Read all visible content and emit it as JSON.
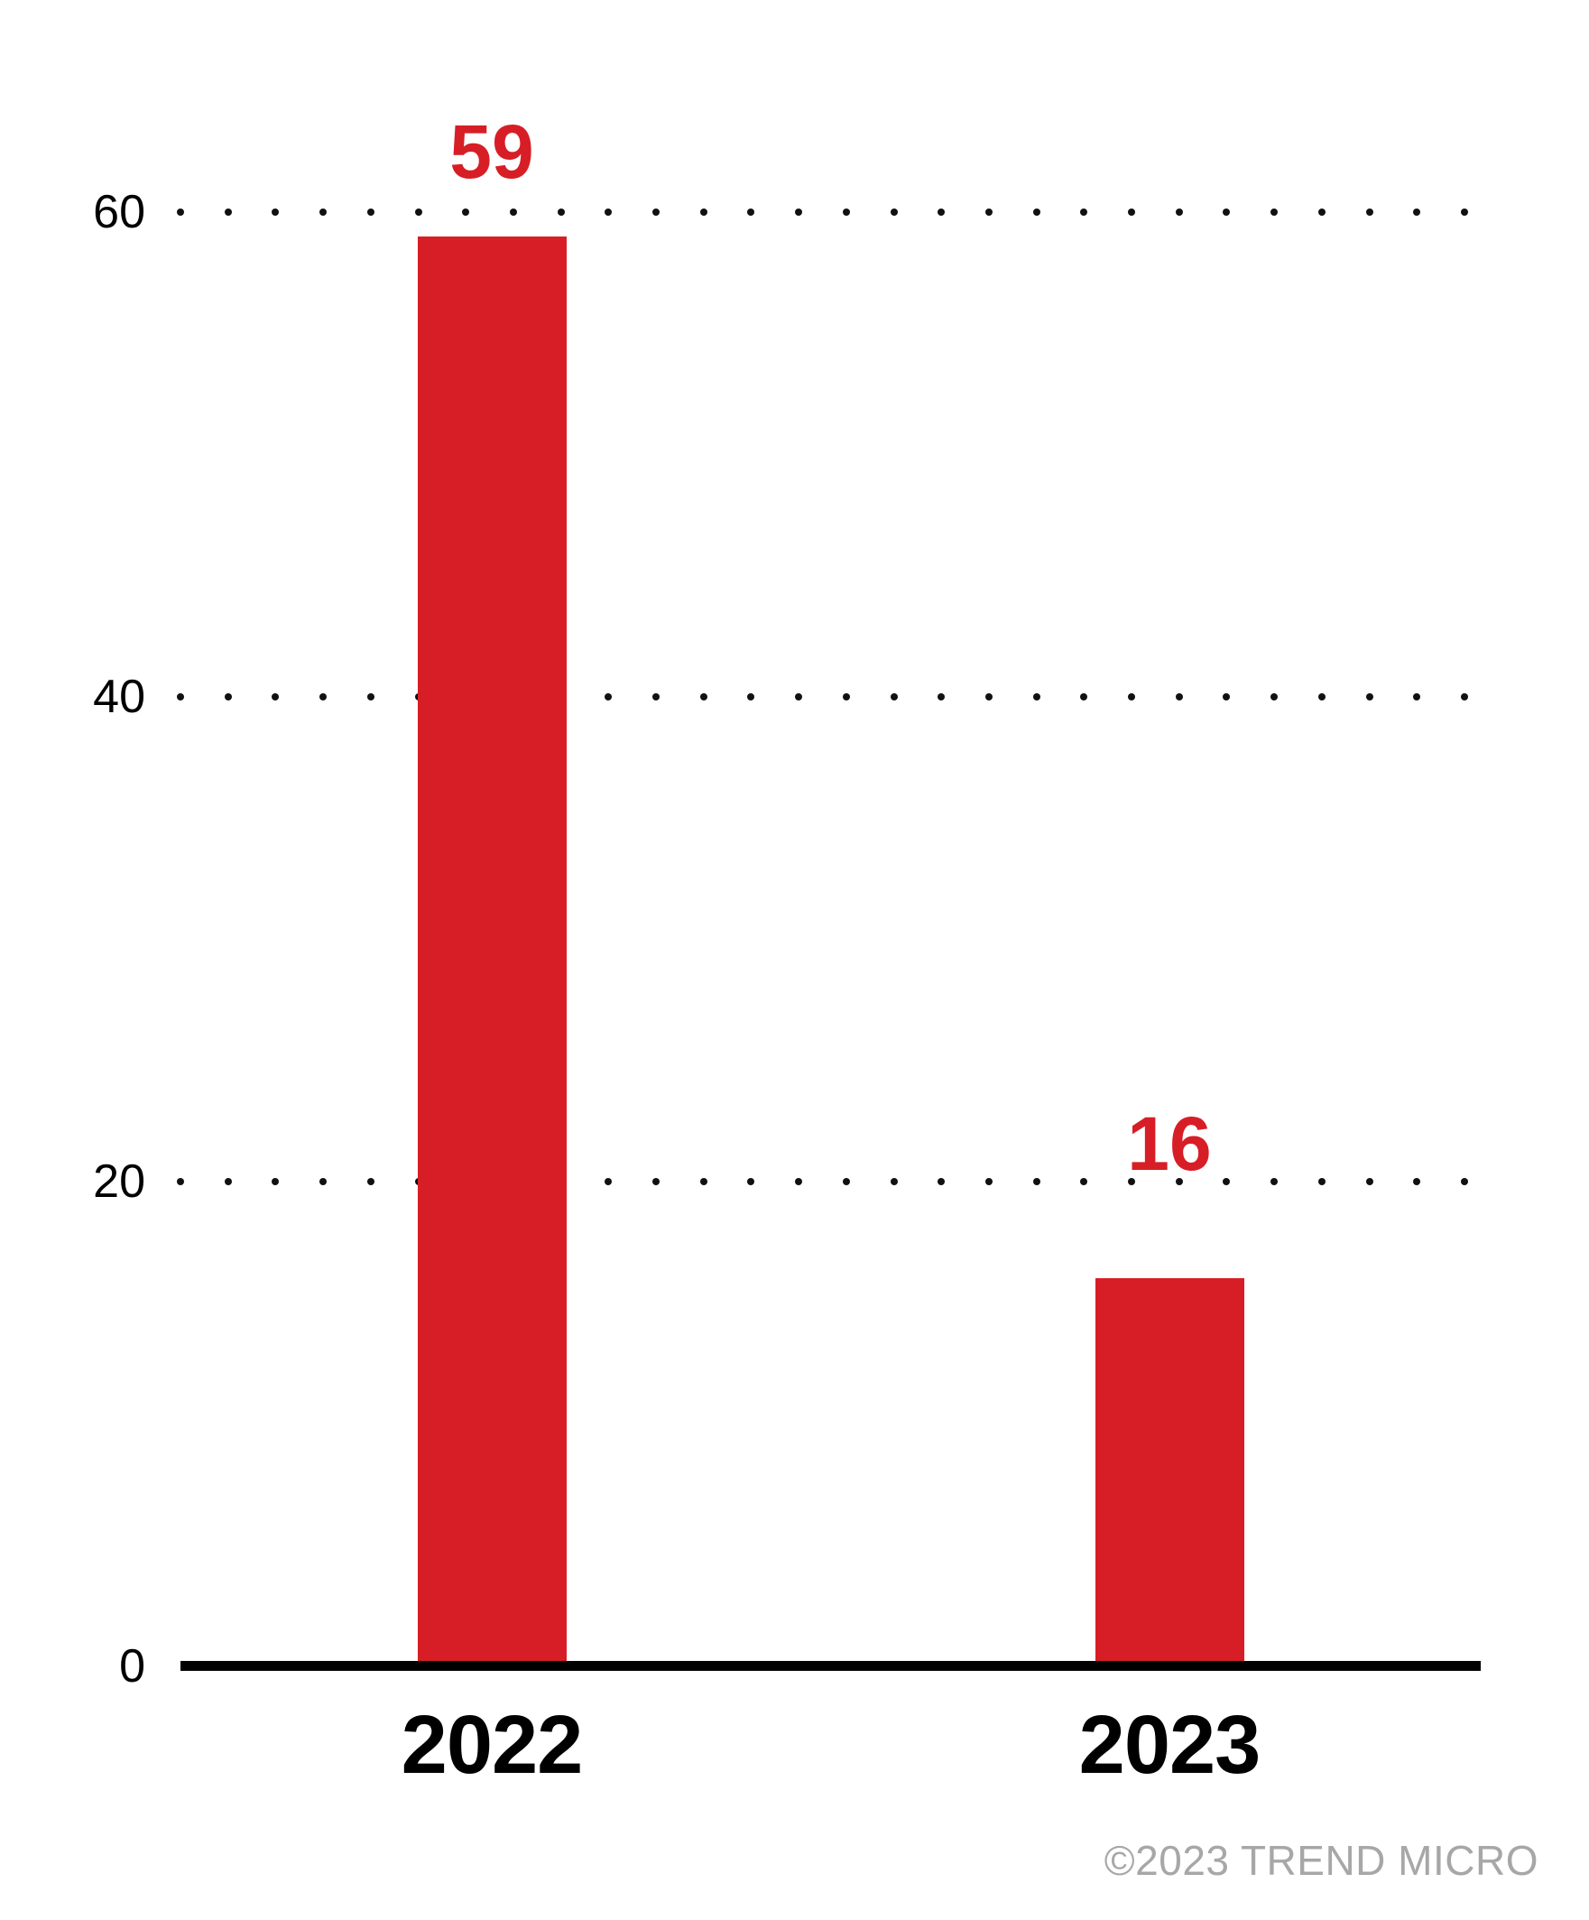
{
  "chart_data": {
    "type": "bar",
    "categories": [
      "2022",
      "2023"
    ],
    "values": [
      59,
      16
    ],
    "bar_value_labels": [
      "59",
      "16"
    ],
    "title": "",
    "xlabel": "",
    "ylabel": "",
    "ylim": [
      0,
      65
    ],
    "yticks": [
      0,
      20,
      40,
      60
    ],
    "ytick_labels": [
      "0",
      "20",
      "40",
      "60"
    ],
    "gridline_ticks": [
      20,
      40,
      60
    ],
    "gridline_style": "dotted",
    "legend": "none",
    "colors": {
      "bar": "#D71E26",
      "value_label": "#D71E26",
      "axis": "#000000",
      "tick_label": "#000000",
      "grid_dot": "#111111"
    }
  },
  "footer": {
    "copyright": "©2023 TREND MICRO",
    "color": "#A7A7A7"
  }
}
